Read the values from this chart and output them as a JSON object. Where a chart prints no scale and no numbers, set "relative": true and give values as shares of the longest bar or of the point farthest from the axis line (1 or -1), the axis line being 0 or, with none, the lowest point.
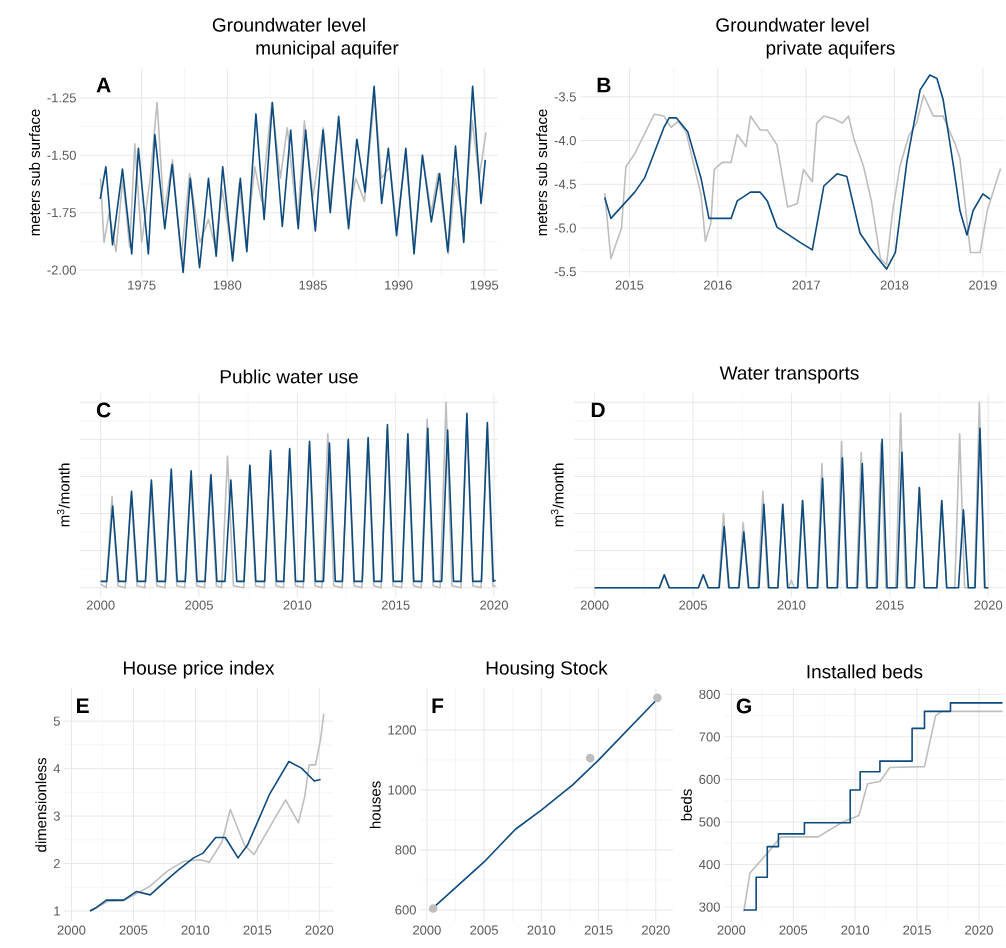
{
  "chart_data": [
    {
      "type": "line",
      "title": "Groundwater level",
      "subtitle": "municipal aquifer",
      "ylabel": "meters sub surface",
      "annotations": [
        "A"
      ],
      "grid": true,
      "xlim": [
        1971.4,
        1995.8
      ],
      "xticks": [
        1975,
        1980,
        1985,
        1990,
        1995
      ],
      "ylim": [
        -2.03,
        -1.12
      ],
      "yticks": [
        {
          "value": -2,
          "label": "-2.00"
        },
        -1.75,
        {
          "value": -1.5,
          "label": "-1.50"
        },
        -1.25
      ],
      "series": [
        {
          "color": "#bebebe",
          "x": [
            1972.6,
            1972.8,
            1973.1,
            1973.5,
            1973.9,
            1974.3,
            1974.6,
            1975.0,
            1975.5,
            1975.9,
            1976.3,
            1976.8,
            1977.3,
            1977.8,
            1978.4,
            1978.9,
            1979.3,
            1979.7,
            1980.3,
            1980.7,
            1981.1,
            1981.6,
            1982.0,
            1982.6,
            1983.1,
            1983.5,
            1984.1,
            1984.5,
            1985.0,
            1985.6,
            1986.0,
            1986.5,
            1987.0,
            1987.5,
            1988.0,
            1988.6,
            1989.0,
            1989.5,
            1989.9,
            1990.4,
            1990.9,
            1991.4,
            1991.9,
            1992.3,
            1992.9,
            1993.3,
            1993.8,
            1994.3,
            1994.7,
            1995.1
          ],
          "values": [
            -1.6,
            -1.88,
            -1.75,
            -1.92,
            -1.6,
            -1.9,
            -1.45,
            -1.88,
            -1.6,
            -1.27,
            -1.75,
            -1.52,
            -1.95,
            -1.58,
            -1.88,
            -1.78,
            -1.9,
            -1.65,
            -1.93,
            -1.62,
            -1.9,
            -1.55,
            -1.7,
            -1.27,
            -1.6,
            -1.38,
            -1.8,
            -1.35,
            -1.68,
            -1.38,
            -1.7,
            -1.37,
            -1.78,
            -1.6,
            -1.7,
            -1.24,
            -1.6,
            -1.55,
            -1.82,
            -1.5,
            -1.9,
            -1.5,
            -1.75,
            -1.58,
            -1.93,
            -1.6,
            -1.8,
            -1.35,
            -1.6,
            -1.4
          ]
        },
        {
          "color": "#0d4a7e",
          "x": [
            1972.58,
            1972.91,
            1973.3,
            1973.88,
            1974.42,
            1974.81,
            1975.39,
            1975.77,
            1976.35,
            1976.78,
            1977.42,
            1977.84,
            1978.38,
            1978.9,
            1979.35,
            1979.73,
            1980.31,
            1980.76,
            1981.14,
            1981.67,
            1982.15,
            1982.63,
            1983.21,
            1983.7,
            1984.14,
            1984.57,
            1985.14,
            1985.59,
            1986.01,
            1986.5,
            1987.08,
            1987.56,
            1988.04,
            1988.57,
            1989.01,
            1989.4,
            1989.88,
            1990.42,
            1990.9,
            1991.39,
            1991.91,
            1992.39,
            1992.87,
            1993.32,
            1993.8,
            1994.32,
            1994.81,
            1995.06
          ],
          "values": [
            -1.69,
            -1.55,
            -1.89,
            -1.56,
            -1.93,
            -1.47,
            -1.93,
            -1.41,
            -1.82,
            -1.54,
            -2.01,
            -1.6,
            -1.99,
            -1.6,
            -1.94,
            -1.55,
            -1.96,
            -1.6,
            -1.92,
            -1.32,
            -1.78,
            -1.27,
            -1.81,
            -1.39,
            -1.82,
            -1.39,
            -1.83,
            -1.39,
            -1.75,
            -1.33,
            -1.82,
            -1.43,
            -1.66,
            -1.2,
            -1.71,
            -1.47,
            -1.85,
            -1.47,
            -1.93,
            -1.5,
            -1.79,
            -1.58,
            -1.92,
            -1.46,
            -1.88,
            -1.2,
            -1.71,
            -1.52
          ]
        }
      ]
    },
    {
      "type": "line",
      "title": "Groundwater level",
      "subtitle": "private aquifers",
      "ylabel": "meters sub surface",
      "annotations": [
        "B"
      ],
      "grid": true,
      "xlim": [
        2014.44,
        2019.25
      ],
      "xticks": [
        2015,
        2016,
        2017,
        2018,
        2019
      ],
      "ylim": [
        -5.56,
        -3.17
      ],
      "yticks": [
        -5.5,
        {
          "value": -5,
          "label": "-5.0"
        },
        -4.5,
        {
          "value": -4,
          "label": "-4.0"
        },
        -3.5
      ],
      "series": [
        {
          "color": "#bebebe",
          "x": [
            2014.72,
            2014.79,
            2014.91,
            2014.96,
            2015.06,
            2015.28,
            2015.39,
            2015.47,
            2015.55,
            2015.64,
            2015.81,
            2015.86,
            2015.92,
            2015.96,
            2016.05,
            2016.15,
            2016.22,
            2016.32,
            2016.37,
            2016.48,
            2016.56,
            2016.67,
            2016.79,
            2016.9,
            2016.97,
            2017.07,
            2017.12,
            2017.2,
            2017.31,
            2017.41,
            2017.48,
            2017.54,
            2017.65,
            2017.74,
            2017.84,
            2017.91,
            2017.98,
            2018.06,
            2018.16,
            2018.25,
            2018.33,
            2018.44,
            2018.55,
            2018.69,
            2018.74,
            2018.86,
            2018.97,
            2019.05,
            2019.2
          ],
          "values": [
            -4.6,
            -5.35,
            -5.0,
            -4.3,
            -4.15,
            -3.7,
            -3.72,
            -3.85,
            -3.78,
            -3.9,
            -4.62,
            -5.15,
            -4.95,
            -4.33,
            -4.25,
            -4.25,
            -3.93,
            -4.07,
            -3.72,
            -3.88,
            -3.88,
            -4.05,
            -4.76,
            -4.72,
            -4.33,
            -4.47,
            -3.8,
            -3.72,
            -3.75,
            -3.8,
            -3.72,
            -3.98,
            -4.3,
            -4.7,
            -5.35,
            -5.42,
            -4.8,
            -4.3,
            -3.95,
            -3.8,
            -3.48,
            -3.72,
            -3.72,
            -4.05,
            -4.2,
            -5.28,
            -5.28,
            -4.8,
            -4.32
          ]
        },
        {
          "color": "#0d4a7e",
          "x": [
            2014.72,
            2014.79,
            2015.06,
            2015.17,
            2015.39,
            2015.45,
            2015.53,
            2015.66,
            2015.81,
            2015.9,
            2016.15,
            2016.22,
            2016.37,
            2016.48,
            2016.56,
            2016.67,
            2016.94,
            2017.07,
            2017.2,
            2017.35,
            2017.46,
            2017.61,
            2017.76,
            2017.91,
            2018.01,
            2018.14,
            2018.29,
            2018.4,
            2018.48,
            2018.55,
            2018.67,
            2018.74,
            2018.82,
            2018.89,
            2019.0,
            2019.08
          ],
          "values": [
            -4.65,
            -4.89,
            -4.59,
            -4.43,
            -3.85,
            -3.74,
            -3.74,
            -3.9,
            -4.43,
            -4.89,
            -4.89,
            -4.69,
            -4.59,
            -4.59,
            -4.69,
            -4.99,
            -5.17,
            -5.25,
            -4.52,
            -4.38,
            -4.41,
            -5.06,
            -5.28,
            -5.47,
            -5.28,
            -4.24,
            -3.42,
            -3.25,
            -3.29,
            -3.53,
            -4.31,
            -4.8,
            -5.08,
            -4.8,
            -4.61,
            -4.67
          ]
        }
      ]
    },
    {
      "type": "line",
      "title": "Public water use",
      "ylabel": "m$^{3}$/month",
      "annotations": [
        "C"
      ],
      "grid": true,
      "relative": true,
      "xlim": [
        1998.95,
        2020.2
      ],
      "xticks": [
        2000,
        2005,
        2010,
        2015,
        2020
      ],
      "series": [
        {
          "color": "#bebebe",
          "x": [
            2000.0,
            2000.28,
            2000.58,
            2000.88,
            2001.25,
            2001.55,
            2001.85,
            2002.25,
            2002.55,
            2002.85,
            2003.27,
            2003.57,
            2003.87,
            2004.28,
            2004.58,
            2004.88,
            2005.28,
            2005.58,
            2005.88,
            2006.15,
            2006.45,
            2006.75,
            2007.27,
            2007.57,
            2007.87,
            2008.32,
            2008.62,
            2008.92,
            2009.3,
            2009.6,
            2009.9,
            2010.3,
            2010.6,
            2010.9,
            2011.25,
            2011.55,
            2011.85,
            2012.28,
            2012.58,
            2012.88,
            2013.28,
            2013.58,
            2013.88,
            2014.26,
            2014.56,
            2014.86,
            2015.3,
            2015.6,
            2015.9,
            2016.3,
            2016.6,
            2016.9,
            2017.26,
            2017.56,
            2017.86,
            2018.32,
            2018.62,
            2018.92,
            2019.34,
            2019.64,
            2019.94,
            2020.08
          ],
          "values": [
            0.02,
            0,
            0.49,
            0.01,
            0,
            0.5,
            0.01,
            0,
            0.56,
            0.01,
            0,
            0.62,
            0.01,
            0,
            0.6,
            0.01,
            0,
            0.6,
            0.01,
            0,
            0.71,
            0.01,
            0,
            0.66,
            0.01,
            0,
            0.72,
            0.01,
            0,
            0.74,
            0.01,
            0,
            0.77,
            0.01,
            0,
            0.83,
            0.01,
            0,
            0.79,
            0.01,
            0,
            0.8,
            0.01,
            0,
            0.85,
            0.01,
            0,
            0.8,
            0.01,
            0,
            0.91,
            0.01,
            0,
            1,
            0.01,
            0,
            0.9,
            0.01,
            0,
            0.86,
            0.01,
            0.01
          ]
        },
        {
          "color": "#0d4a7e",
          "x": [
            2000.0,
            2000.31,
            2000.61,
            2000.91,
            2001.27,
            2001.57,
            2001.87,
            2002.28,
            2002.58,
            2002.88,
            2003.29,
            2003.59,
            2003.89,
            2004.3,
            2004.6,
            2004.9,
            2005.31,
            2005.61,
            2005.91,
            2006.32,
            2006.62,
            2006.92,
            2007.29,
            2007.59,
            2007.89,
            2008.34,
            2008.64,
            2008.94,
            2009.31,
            2009.61,
            2009.91,
            2010.32,
            2010.62,
            2010.92,
            2011.33,
            2011.63,
            2011.93,
            2012.29,
            2012.59,
            2012.89,
            2013.3,
            2013.6,
            2013.9,
            2014.28,
            2014.58,
            2014.88,
            2015.32,
            2015.62,
            2015.92,
            2016.33,
            2016.63,
            2016.93,
            2017.34,
            2017.64,
            2017.94,
            2018.32,
            2018.62,
            2018.92,
            2019.36,
            2019.66,
            2019.96,
            2020.08
          ],
          "values": [
            0.034,
            0.034,
            0.44,
            0.034,
            0.034,
            0.52,
            0.034,
            0.034,
            0.58,
            0.034,
            0.034,
            0.64,
            0.034,
            0.034,
            0.63,
            0.034,
            0.034,
            0.61,
            0.034,
            0.034,
            0.58,
            0.034,
            0.034,
            0.66,
            0.034,
            0.034,
            0.74,
            0.034,
            0.034,
            0.75,
            0.034,
            0.034,
            0.79,
            0.034,
            0.034,
            0.78,
            0.034,
            0.034,
            0.8,
            0.034,
            0.034,
            0.81,
            0.034,
            0.034,
            0.88,
            0.034,
            0.034,
            0.83,
            0.034,
            0.034,
            0.86,
            0.034,
            0.034,
            0.85,
            0.034,
            0.034,
            0.94,
            0.034,
            0.034,
            0.89,
            0.034,
            0.04
          ]
        }
      ]
    },
    {
      "type": "line",
      "title": "Water transports",
      "ylabel": "m$^{3}$/month",
      "annotations": [
        "D"
      ],
      "grid": true,
      "relative": true,
      "xlim": [
        1998.95,
        2020.85
      ],
      "xticks": [
        2000,
        2005,
        2010,
        2015,
        2020
      ],
      "series": [
        {
          "color": "#bebebe",
          "x": [
            2000.0,
            2003.29,
            2003.54,
            2003.79,
            2005.27,
            2005.52,
            2005.77,
            2006.3,
            2006.55,
            2006.8,
            2007.3,
            2007.55,
            2007.8,
            2008.3,
            2008.55,
            2008.8,
            2009.31,
            2009.56,
            2009.81,
            2009.85,
            2010.0,
            2010.15,
            2010.3,
            2010.55,
            2010.8,
            2011.3,
            2011.55,
            2011.8,
            2012.3,
            2012.55,
            2012.8,
            2013.3,
            2013.55,
            2013.8,
            2014.3,
            2014.55,
            2014.8,
            2015.3,
            2015.55,
            2015.8,
            2016.25,
            2016.5,
            2016.75,
            2017.39,
            2017.64,
            2017.89,
            2018.3,
            2018.55,
            2018.8,
            2019.3,
            2019.55,
            2019.8,
            2020.0
          ],
          "values": [
            0,
            0,
            0.07,
            0,
            0,
            0.07,
            0,
            0,
            0.4,
            0,
            0,
            0.35,
            0,
            0,
            0.52,
            0,
            0,
            0.45,
            0,
            0,
            0.04,
            0,
            0,
            0.47,
            0,
            0,
            0.67,
            0,
            0,
            0.79,
            0,
            0,
            0.73,
            0,
            0,
            0.78,
            0,
            0,
            0.94,
            0,
            0,
            0.54,
            0,
            0,
            0.47,
            0,
            0,
            0.83,
            0,
            0,
            1,
            0,
            0
          ]
        },
        {
          "color": "#0d4a7e",
          "x": [
            2000.0,
            2003.29,
            2003.54,
            2003.79,
            2005.27,
            2005.52,
            2005.77,
            2006.33,
            2006.58,
            2006.83,
            2007.33,
            2007.58,
            2007.83,
            2008.35,
            2008.6,
            2008.85,
            2009.31,
            2009.56,
            2009.81,
            2010.32,
            2010.57,
            2010.82,
            2011.33,
            2011.58,
            2011.83,
            2012.34,
            2012.59,
            2012.84,
            2013.35,
            2013.6,
            2013.85,
            2014.36,
            2014.61,
            2014.86,
            2015.37,
            2015.62,
            2015.87,
            2016.25,
            2016.5,
            2016.75,
            2017.39,
            2017.64,
            2017.89,
            2018.49,
            2018.74,
            2018.99,
            2019.33,
            2019.58,
            2019.83,
            2020.0
          ],
          "values": [
            0,
            0,
            0.07,
            0,
            0,
            0.07,
            0,
            0,
            0.33,
            0,
            0,
            0.3,
            0,
            0,
            0.45,
            0,
            0,
            0.45,
            0,
            0,
            0.47,
            0,
            0,
            0.59,
            0,
            0,
            0.7,
            0,
            0,
            0.67,
            0,
            0,
            0.8,
            0,
            0,
            0.73,
            0,
            0,
            0.54,
            0,
            0,
            0.47,
            0,
            0,
            0.42,
            0,
            0,
            0.86,
            0,
            0
          ]
        }
      ]
    },
    {
      "type": "line",
      "title": "House price index",
      "ylabel": "dimensionless",
      "annotations": [
        "E"
      ],
      "grid": true,
      "xlim": [
        1999.4,
        2021.1
      ],
      "xticks": [
        2000,
        2005,
        2010,
        2015,
        2020
      ],
      "ylim": [
        0.77,
        5.7
      ],
      "yticks": [
        1,
        2,
        3,
        4,
        5
      ],
      "series": [
        {
          "color": "#bebebe",
          "x": [
            2001.49,
            2002.92,
            2004.21,
            2006.26,
            2007.79,
            2009.08,
            2010.36,
            2011.13,
            2012.15,
            2012.82,
            2013.95,
            2014.72,
            2016.51,
            2017.28,
            2018.31,
            2018.82,
            2019.18,
            2019.69,
            2020.1,
            2020.36
          ],
          "values": [
            1.0,
            1.2,
            1.22,
            1.51,
            1.85,
            2.05,
            2.08,
            2.03,
            2.46,
            3.14,
            2.39,
            2.19,
            3.0,
            3.34,
            2.86,
            3.41,
            4.08,
            4.08,
            4.62,
            5.16
          ]
        },
        {
          "color": "#0d4a7e",
          "x": [
            2001.49,
            2002.0,
            2002.82,
            2004.21,
            2005.23,
            2006.36,
            2007.54,
            2008.56,
            2009.85,
            2010.62,
            2011.64,
            2012.41,
            2013.44,
            2014.21,
            2016.0,
            2017.54,
            2018.56,
            2019.59,
            2020.1
          ],
          "values": [
            1.0,
            1.07,
            1.23,
            1.23,
            1.41,
            1.34,
            1.62,
            1.85,
            2.12,
            2.22,
            2.55,
            2.55,
            2.12,
            2.39,
            3.47,
            4.15,
            4.01,
            3.74,
            3.77
          ]
        }
      ]
    },
    {
      "type": "line",
      "title": "Housing Stock",
      "ylabel": "houses",
      "annotations": [
        "F"
      ],
      "grid": true,
      "xlim": [
        1999.4,
        2021.5
      ],
      "xticks": [
        2000,
        2005,
        2010,
        2015,
        2020
      ],
      "ylim": [
        560,
        1340
      ],
      "yticks": [
        600,
        800,
        1000,
        1200
      ],
      "series": [
        {
          "type": "scatter",
          "marker": "circle",
          "color": "#bebebe",
          "x": [
            2000.55,
            2014.27,
            2020.14
          ],
          "values": [
            605,
            1106,
            1307
          ]
        },
        {
          "color": "#0d4a7e",
          "x": [
            2000.55,
            2005.0,
            2007.74,
            2010.0,
            2012.74,
            2014.93,
            2020.14
          ],
          "values": [
            607,
            760,
            869,
            933,
            1017,
            1097,
            1303
          ]
        }
      ]
    },
    {
      "type": "line",
      "title": "Installed beds",
      "ylabel": "beds",
      "annotations": [
        "G"
      ],
      "grid": true,
      "xlim": [
        1999.4,
        2022.1
      ],
      "xticks": [
        2000,
        2005,
        2010,
        2015,
        2020
      ],
      "ylim": [
        265,
        815
      ],
      "yticks": [
        300,
        400,
        500,
        600,
        700,
        800
      ],
      "series": [
        {
          "color": "#bebebe",
          "x": [
            2001.0,
            2001.5,
            2003.0,
            2004.0,
            2007.0,
            2009.0,
            2010.3,
            2011.0,
            2012.0,
            2012.8,
            2015.6,
            2016.5,
            2017.0,
            2021.9
          ],
          "values": [
            290,
            380,
            430,
            465,
            465,
            500,
            515,
            590,
            595,
            628,
            630,
            750,
            760,
            760
          ]
        },
        {
          "type": "step",
          "color": "#0d4a7e",
          "x": [
            2001.0,
            2002.0,
            2002.9,
            2003.8,
            2005.9,
            2009.6,
            2010.4,
            2012.0,
            2014.6,
            2015.6,
            2017.7,
            2021.9
          ],
          "values": [
            293,
            370,
            442,
            472,
            498,
            575,
            618,
            643,
            720,
            760,
            780,
            780
          ]
        }
      ]
    }
  ]
}
